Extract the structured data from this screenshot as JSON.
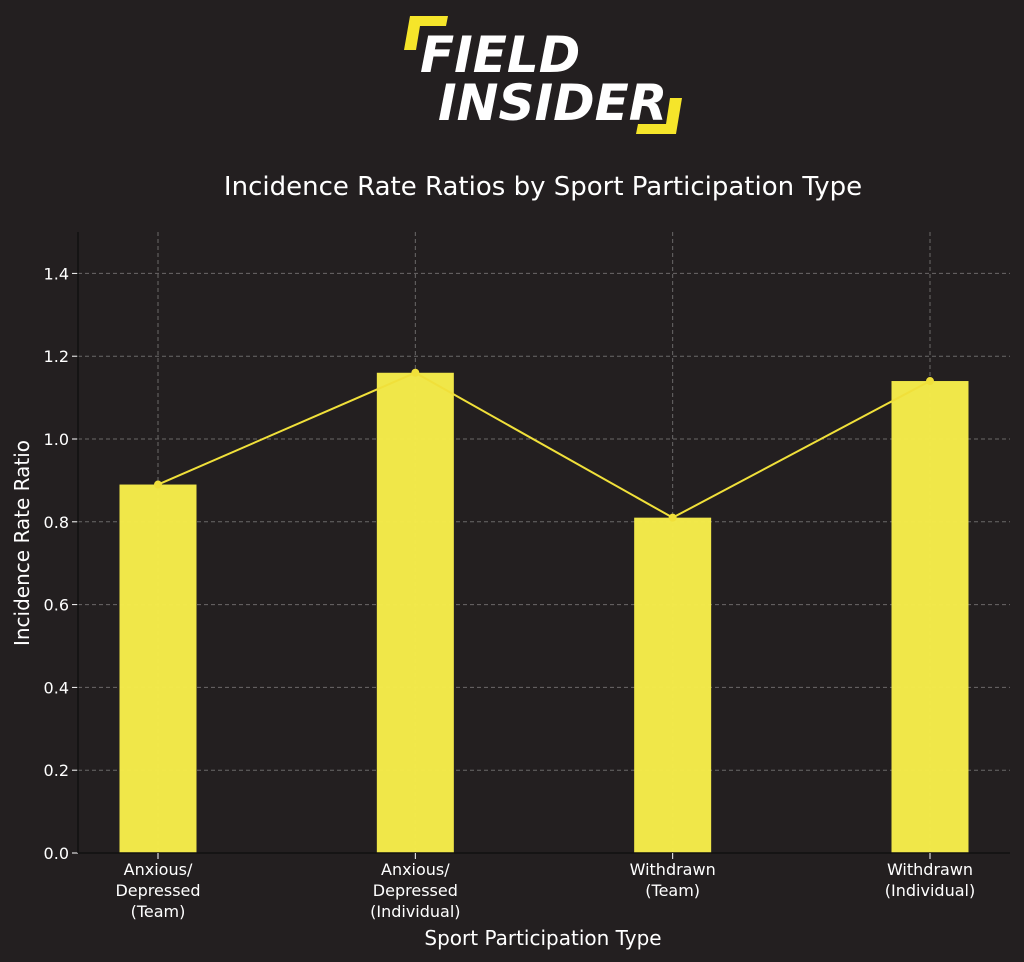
{
  "logo": {
    "line1": "FIELD",
    "line2": "INSIDER",
    "accent_color": "#f5e52a",
    "text_color": "#ffffff"
  },
  "colors": {
    "background": "#231f20",
    "bar": "#f5ec4a",
    "line": "#f0e03a",
    "text": "#ffffff",
    "grid": "#6b6868"
  },
  "chart_data": {
    "type": "bar",
    "title": "Incidence Rate Ratios by Sport Participation Type",
    "xlabel": "Sport Participation Type",
    "ylabel": "Incidence Rate Ratio",
    "categories": [
      [
        "Anxious/",
        "Depressed",
        "(Team)"
      ],
      [
        "Anxious/",
        "Depressed",
        "(Individual)"
      ],
      [
        "Withdrawn",
        "(Team)"
      ],
      [
        "Withdrawn",
        "(Individual)"
      ]
    ],
    "values": [
      0.89,
      1.16,
      0.81,
      1.14
    ],
    "overlay": "line with markers connecting bar tops",
    "ylim": [
      0.0,
      1.5
    ],
    "yticks": [
      "0.0",
      "0.2",
      "0.4",
      "0.6",
      "0.8",
      "1.0",
      "1.2",
      "1.4"
    ],
    "grid": true,
    "legend": "none"
  }
}
